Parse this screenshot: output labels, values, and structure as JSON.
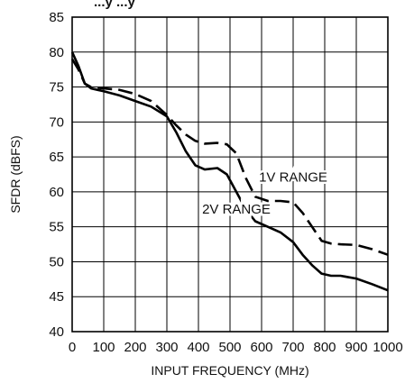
{
  "chart_data": {
    "type": "line",
    "title_partial": "...y ...y",
    "xlabel": "INPUT FREQUENCY (MHz)",
    "ylabel": "SFDR (dBFS)",
    "xlim": [
      0,
      1000
    ],
    "ylim": [
      40,
      85
    ],
    "x_ticks": [
      0,
      100,
      200,
      300,
      400,
      500,
      600,
      700,
      800,
      900,
      1000
    ],
    "y_ticks": [
      40,
      45,
      50,
      55,
      60,
      65,
      70,
      75,
      80,
      85
    ],
    "x_tick_labels": [
      "0",
      "100",
      "200",
      "300",
      "400",
      "500",
      "600",
      "700",
      "800",
      "900",
      "1000"
    ],
    "y_tick_labels": [
      "40",
      "45",
      "50",
      "55",
      "60",
      "65",
      "70",
      "75",
      "80",
      "85"
    ],
    "grid": true,
    "legend": "none",
    "series": [
      {
        "name": "2V RANGE",
        "style": "solid",
        "color": "#000000",
        "x": [
          0,
          20,
          40,
          60,
          80,
          100,
          150,
          200,
          250,
          300,
          330,
          360,
          390,
          420,
          460,
          490,
          520,
          550,
          580,
          620,
          660,
          700,
          730,
          760,
          790,
          820,
          850,
          900,
          950,
          1000
        ],
        "y": [
          80,
          78,
          75.5,
          74.8,
          74.6,
          74.4,
          73.8,
          73,
          72.2,
          70.8,
          68.5,
          65.8,
          63.8,
          63.2,
          63.4,
          62.5,
          60,
          57.5,
          55.8,
          55,
          54.2,
          52.8,
          51,
          49.5,
          48.3,
          48,
          48,
          47.6,
          46.8,
          45.9
        ]
      },
      {
        "name": "1V RANGE",
        "style": "dashed",
        "color": "#000000",
        "x": [
          0,
          20,
          40,
          60,
          80,
          100,
          150,
          200,
          250,
          300,
          330,
          360,
          390,
          420,
          460,
          490,
          520,
          550,
          580,
          620,
          660,
          700,
          730,
          760,
          790,
          820,
          850,
          900,
          950,
          1000
        ],
        "y": [
          79,
          77.5,
          75.5,
          75,
          74.9,
          74.8,
          74.6,
          74,
          73,
          71,
          69.5,
          68.2,
          67.3,
          66.9,
          67,
          66.8,
          65.5,
          62,
          59.3,
          58.7,
          58.7,
          58.5,
          57,
          55,
          53,
          52.6,
          52.5,
          52.4,
          51.8,
          51
        ]
      }
    ],
    "annotations": [
      {
        "text": "1V RANGE",
        "x": 700,
        "y": 61.5,
        "series": "1V RANGE"
      },
      {
        "text": "2V RANGE",
        "x": 520,
        "y": 56.9,
        "series": "2V RANGE"
      }
    ]
  }
}
